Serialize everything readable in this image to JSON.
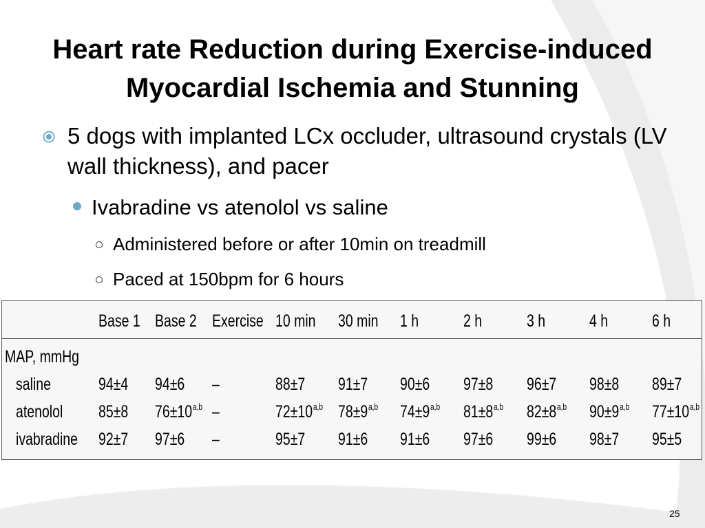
{
  "slide": {
    "title_lines": [
      "Heart rate Reduction during Exercise-induced",
      "Myocardial Ischemia and Stunning"
    ],
    "bullet1": "5 dogs with implanted LCx occluder, ultrasound crystals (LV wall thickness), and pacer",
    "bullet2": "Ivabradine vs atenolol vs saline",
    "sub_bullets": [
      "Administered before or after 10min on treadmill",
      "Paced at 150bpm for 6 hours"
    ],
    "page_number": "25"
  },
  "table": {
    "columns": [
      "",
      "Base 1",
      "Base 2",
      "Exercise",
      "10 min",
      "30 min",
      "1 h",
      "2 h",
      "3 h",
      "4 h",
      "6 h"
    ],
    "section_label": "MAP, mmHg",
    "rows": [
      {
        "label": "saline",
        "cells": [
          {
            "v": "94±4",
            "s": ""
          },
          {
            "v": "94±6",
            "s": ""
          },
          {
            "v": "–",
            "s": ""
          },
          {
            "v": "88±7",
            "s": ""
          },
          {
            "v": "91±7",
            "s": ""
          },
          {
            "v": "90±6",
            "s": ""
          },
          {
            "v": "97±8",
            "s": ""
          },
          {
            "v": "96±7",
            "s": ""
          },
          {
            "v": "98±8",
            "s": ""
          },
          {
            "v": "89±7",
            "s": ""
          }
        ]
      },
      {
        "label": "atenolol",
        "cells": [
          {
            "v": "85±8",
            "s": ""
          },
          {
            "v": "76±10",
            "s": "a,b"
          },
          {
            "v": "–",
            "s": ""
          },
          {
            "v": "72±10",
            "s": "a,b"
          },
          {
            "v": "78±9",
            "s": "a,b"
          },
          {
            "v": "74±9",
            "s": "a,b"
          },
          {
            "v": "81±8",
            "s": "a,b"
          },
          {
            "v": "82±8",
            "s": "a,b"
          },
          {
            "v": "90±9",
            "s": "a,b"
          },
          {
            "v": "77±10",
            "s": "a,b"
          }
        ]
      },
      {
        "label": "ivabradine",
        "cells": [
          {
            "v": "92±7",
            "s": ""
          },
          {
            "v": "97±6",
            "s": ""
          },
          {
            "v": "–",
            "s": ""
          },
          {
            "v": "95±7",
            "s": ""
          },
          {
            "v": "91±6",
            "s": ""
          },
          {
            "v": "91±6",
            "s": ""
          },
          {
            "v": "97±6",
            "s": ""
          },
          {
            "v": "99±6",
            "s": ""
          },
          {
            "v": "98±7",
            "s": ""
          },
          {
            "v": "95±5",
            "s": ""
          }
        ]
      }
    ]
  },
  "colors": {
    "bullet_accent": "#6fa8c8",
    "swoosh": "#e6e6e6"
  }
}
